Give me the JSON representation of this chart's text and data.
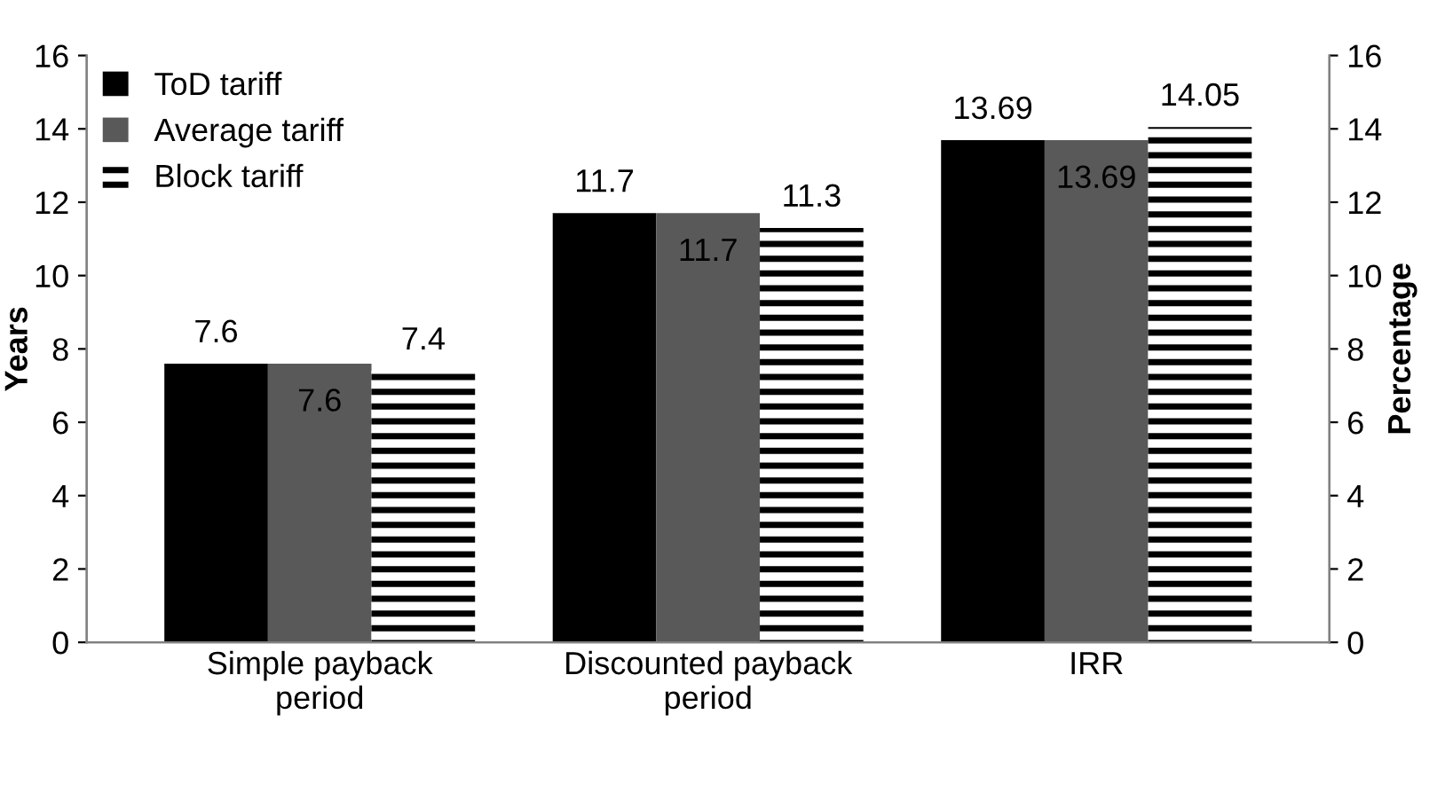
{
  "chart_data": {
    "type": "bar",
    "categories": [
      "Simple payback\nperiod",
      "Discounted payback\nperiod",
      "IRR"
    ],
    "series": [
      {
        "name": "ToD tariff",
        "color": "#000000",
        "values": [
          7.6,
          11.7,
          13.69
        ]
      },
      {
        "name": "Average tariff",
        "color": "#595959",
        "values": [
          7.6,
          11.7,
          13.69
        ]
      },
      {
        "name": "Block tariff",
        "color": "#000000",
        "values": [
          7.4,
          11.3,
          14.05
        ]
      }
    ],
    "ylabel": "Years",
    "y2label": "Percentage",
    "ylim": [
      0,
      16
    ],
    "yticks": [
      0,
      2,
      4,
      6,
      8,
      10,
      12,
      14,
      16
    ],
    "y2lim": [
      0,
      16
    ],
    "y2ticks": [
      0,
      2,
      4,
      6,
      8,
      10,
      12,
      14,
      16
    ],
    "data_labels": true,
    "legend": "top left",
    "grid": false
  }
}
